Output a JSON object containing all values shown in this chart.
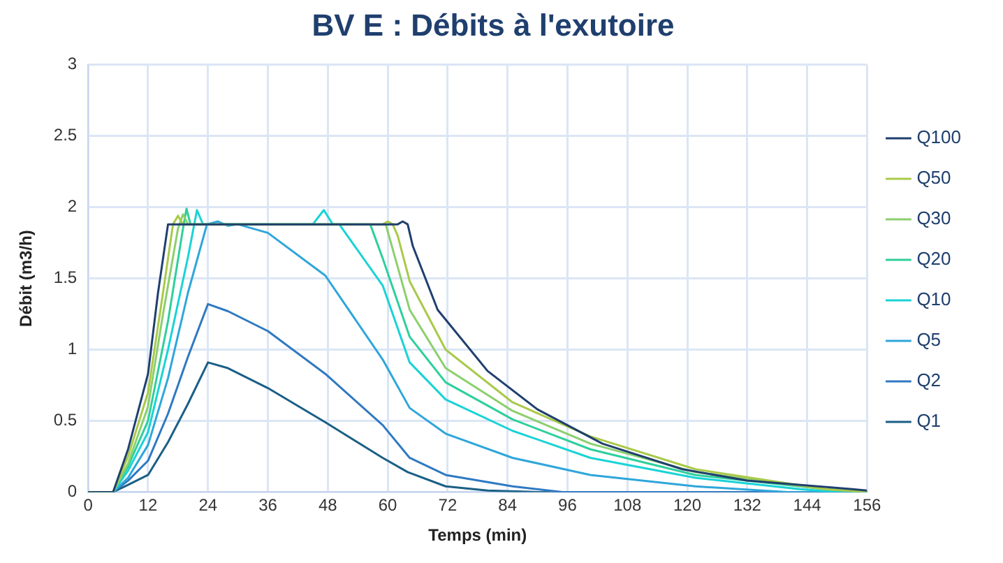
{
  "chart_data": {
    "type": "line",
    "title": "BV E : Débits à l'exutoire",
    "xlabel": "Temps (min)",
    "ylabel": "Débit (m3/h)",
    "xlim": [
      0,
      156
    ],
    "xticks": [
      0,
      12,
      24,
      36,
      48,
      60,
      72,
      84,
      96,
      108,
      120,
      132,
      144,
      156
    ],
    "ylim": [
      0,
      3
    ],
    "yticks": [
      0,
      0.5,
      1,
      1.5,
      2,
      2.5,
      3
    ],
    "grid": true,
    "legend": "right",
    "marker": "none",
    "line_style": "solid",
    "series": [
      {
        "name": "Q100",
        "color": "#1f3f6e",
        "x": [
          0,
          5,
          8,
          12,
          14,
          16,
          30,
          50,
          62,
          63,
          64,
          65,
          70,
          80,
          90,
          103,
          119,
          132,
          153,
          156
        ],
        "values": [
          0,
          0,
          0.3,
          0.83,
          1.4,
          1.88,
          1.88,
          1.88,
          1.88,
          1.9,
          1.88,
          1.73,
          1.28,
          0.85,
          0.58,
          0.34,
          0.16,
          0.08,
          0.02,
          0.01
        ]
      },
      {
        "name": "Q50",
        "color": "#a9c94a",
        "x": [
          0,
          5,
          8,
          12,
          15,
          17,
          18,
          19,
          30,
          50,
          59,
          60,
          61,
          62,
          64.4,
          71.6,
          85,
          100.6,
          121.6,
          147.6,
          156
        ],
        "values": [
          0,
          0,
          0.25,
          0.7,
          1.4,
          1.88,
          1.94,
          1.88,
          1.88,
          1.88,
          1.88,
          1.9,
          1.88,
          1.8,
          1.48,
          1.0,
          0.63,
          0.39,
          0.16,
          0.02,
          0
        ]
      },
      {
        "name": "Q30",
        "color": "#8ccf6e",
        "x": [
          0,
          5,
          8,
          12,
          15,
          18,
          19,
          20,
          30,
          50,
          59.6,
          64.4,
          71.6,
          85,
          100.6,
          121.6,
          147.6,
          156
        ],
        "values": [
          0,
          0,
          0.2,
          0.6,
          1.25,
          1.85,
          1.95,
          1.88,
          1.88,
          1.88,
          1.88,
          1.28,
          0.87,
          0.57,
          0.34,
          0.14,
          0.02,
          0
        ]
      },
      {
        "name": "Q20",
        "color": "#2ecf9c",
        "x": [
          0,
          5,
          8,
          12,
          16,
          19,
          19.7,
          20.5,
          30,
          50,
          56.5,
          59,
          64.4,
          71.6,
          85,
          100.6,
          121.6,
          147.6,
          156
        ],
        "values": [
          0,
          0,
          0.18,
          0.5,
          1.2,
          1.85,
          1.99,
          1.88,
          1.88,
          1.88,
          1.88,
          1.64,
          1.09,
          0.77,
          0.51,
          0.3,
          0.12,
          0.02,
          0
        ]
      },
      {
        "name": "Q10",
        "color": "#19d3d6",
        "x": [
          0,
          5,
          8,
          12,
          16,
          20,
          21.8,
          23,
          30,
          45,
          47.2,
          49,
          50.3,
          59,
          64.4,
          71.6,
          85,
          100.6,
          121.6,
          142.5,
          150,
          156
        ],
        "values": [
          0,
          0,
          0.15,
          0.42,
          1.0,
          1.65,
          1.98,
          1.88,
          1.88,
          1.88,
          1.98,
          1.88,
          1.88,
          1.45,
          0.91,
          0.65,
          0.43,
          0.24,
          0.1,
          0.02,
          0,
          0
        ]
      },
      {
        "name": "Q5",
        "color": "#2ea6db",
        "x": [
          0,
          5,
          8,
          12,
          16,
          20,
          23.8,
          26,
          28,
          30,
          36,
          47.5,
          59,
          64.4,
          71.6,
          85,
          100.6,
          121.6,
          140,
          156
        ],
        "values": [
          0,
          0,
          0.1,
          0.33,
          0.8,
          1.4,
          1.88,
          1.9,
          1.87,
          1.88,
          1.82,
          1.52,
          0.93,
          0.59,
          0.41,
          0.24,
          0.12,
          0.04,
          0,
          0
        ]
      },
      {
        "name": "Q2",
        "color": "#2f79c2",
        "x": [
          0,
          5,
          8,
          12,
          16,
          20,
          24,
          28,
          36,
          47.5,
          59,
          64.4,
          71.6,
          85,
          95,
          156
        ],
        "values": [
          0,
          0,
          0.08,
          0.22,
          0.55,
          0.95,
          1.32,
          1.27,
          1.13,
          0.83,
          0.47,
          0.24,
          0.12,
          0.04,
          0,
          0
        ]
      },
      {
        "name": "Q1",
        "color": "#1a5f86",
        "x": [
          0,
          5,
          8,
          12,
          16,
          20,
          24,
          28,
          36,
          47.5,
          59,
          64,
          71.6,
          80,
          90,
          156
        ],
        "values": [
          0,
          0,
          0.05,
          0.12,
          0.35,
          0.62,
          0.91,
          0.87,
          0.73,
          0.49,
          0.24,
          0.14,
          0.04,
          0.01,
          0,
          0
        ]
      }
    ]
  }
}
